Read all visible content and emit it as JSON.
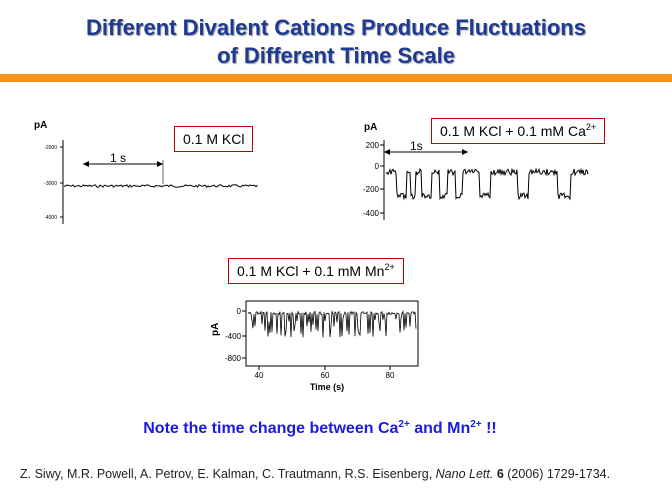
{
  "title": {
    "line1": "Different Divalent Cations Produce Fluctuations",
    "line2": "of Different Time Scale"
  },
  "colors": {
    "title": "#1f3a93",
    "accent_bar": "#f7941d",
    "label_border": "#c00000",
    "note": "#1a1ae6"
  },
  "panels": [
    {
      "label": {
        "base": "0.1 M KCl",
        "sup": ""
      },
      "unit": "pA",
      "scale_bar": "1 s",
      "y_ticks": [
        "-2000",
        "-3000",
        "-4000"
      ],
      "x_ticks": []
    },
    {
      "label": {
        "base": "0.1 M KCl + 0.1 mM Ca",
        "sup": "2+"
      },
      "unit": "pA",
      "scale_bar": "1s",
      "y_ticks": [
        "200",
        "0",
        "-200",
        "-400"
      ],
      "x_ticks": []
    },
    {
      "label": {
        "base": "0.1 M KCl + 0.1 mM Mn",
        "sup": "2+"
      },
      "unit": "pA",
      "scale_bar": "",
      "y_ticks": [
        "0",
        "-400",
        "-800"
      ],
      "x_ticks": [
        "40",
        "60",
        "80"
      ],
      "x_label": "Time (s)"
    }
  ],
  "note": {
    "t1": "Note the time change between Ca",
    "s1": "2+",
    "t2": " and Mn",
    "s2": "2+",
    "t3": " !!"
  },
  "reference": {
    "authors": "Z. Siwy, M.R. Powell, A. Petrov, E. Kalman, C. Trautmann, R.S. Eisenberg, ",
    "journal": "Nano Lett.",
    "volume": "6",
    "rest": " (2006) 1729-1734."
  }
}
